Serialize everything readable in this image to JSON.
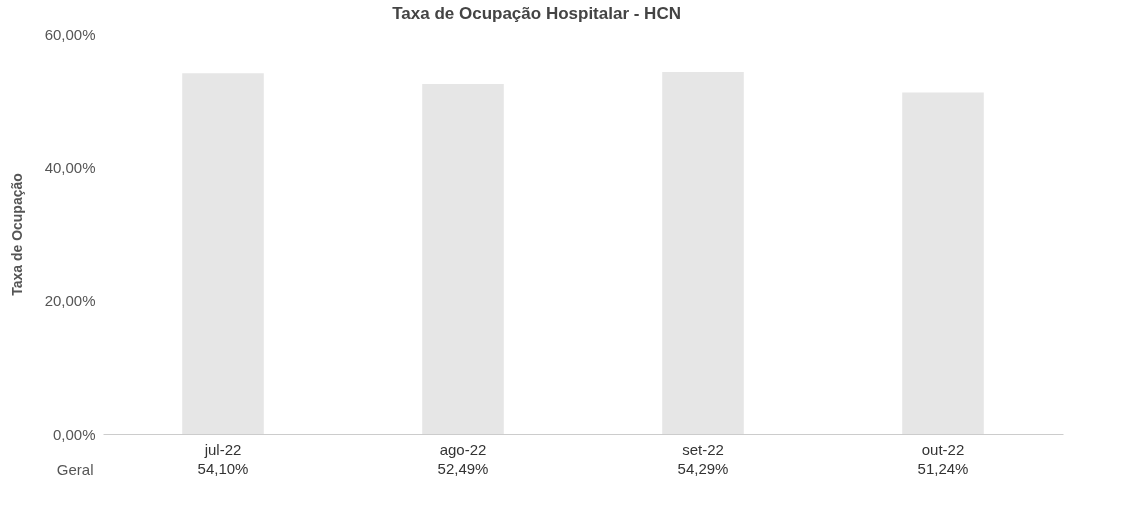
{
  "chart_data": {
    "type": "bar",
    "title": "Taxa de Ocupação Hospitalar - HCN",
    "ylabel": "Taxa de Ocupação",
    "categories": [
      "jul-22",
      "ago-22",
      "set-22",
      "out-22"
    ],
    "series": [
      {
        "name": "Geral",
        "color": "#e6e6e6",
        "values": [
          54.1,
          52.49,
          54.29,
          51.24
        ]
      }
    ],
    "value_labels": [
      "54,10%",
      "52,49%",
      "54,29%",
      "51,24%"
    ],
    "ylim": [
      0,
      60
    ],
    "yticks": [
      {
        "value": 0,
        "label": "0,00%"
      },
      {
        "value": 20,
        "label": "20,00%"
      },
      {
        "value": 40,
        "label": "40,00%"
      },
      {
        "value": 60,
        "label": "60,00%"
      }
    ],
    "legend": false,
    "grid": false
  }
}
